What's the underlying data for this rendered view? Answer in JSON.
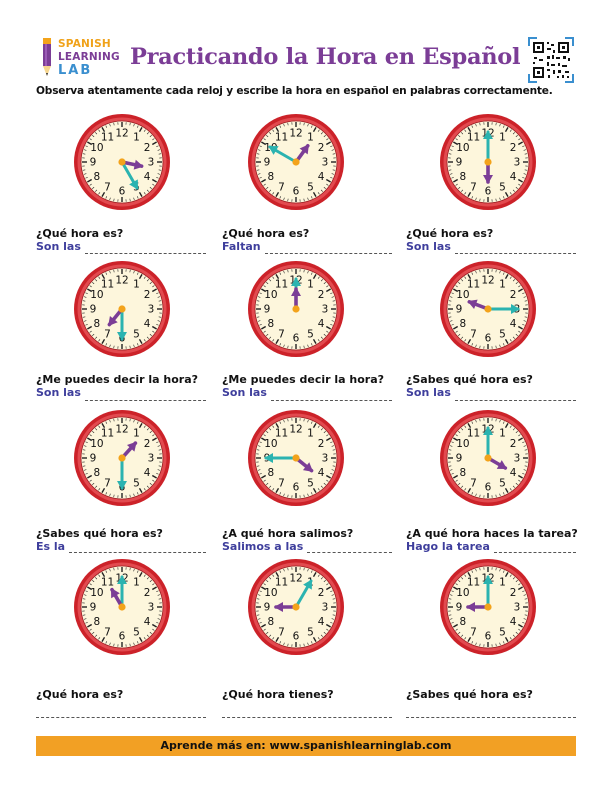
{
  "header": {
    "logo": {
      "line1": "SPANISH",
      "line2": "LEARNING",
      "line3": "LAB"
    },
    "title": "Practicando la Hora en Español",
    "instructions": "Observa atentamente cada reloj y escribe la hora en español en palabras correctamente.",
    "qr_icon": "qr-code-icon"
  },
  "colors": {
    "title": "#7b3d96",
    "clock_rim": "#cc2229",
    "clock_face": "#fdf6dc",
    "hour_hand": "#7b3d96",
    "minute_hand": "#2bb3b0",
    "center": "#f3a31b",
    "prefix_text": "#3e3e9c",
    "footer_bg": "#f2a024"
  },
  "exercises": [
    {
      "question": "¿Qué hora es?",
      "prefix": "Son las",
      "hour": 3.4,
      "minute": 25
    },
    {
      "question": "¿Qué hora es?",
      "prefix": "Faltan",
      "hour": 1.2,
      "minute": 50
    },
    {
      "question": "¿Qué hora es?",
      "prefix": "Son las",
      "hour": 6,
      "minute": 0
    },
    {
      "question": "¿Me puedes decir la hora?",
      "prefix": "Son las",
      "hour": 7.3,
      "minute": 30
    },
    {
      "question": "¿Me puedes decir la hora?",
      "prefix": "Son las",
      "hour": 12,
      "minute": 0
    },
    {
      "question": "¿Sabes qué hora es?",
      "prefix": "Son las",
      "hour": 9.7,
      "minute": 15
    },
    {
      "question": "¿Sabes qué hora es?",
      "prefix": "Es la",
      "hour": 1.4,
      "minute": 30
    },
    {
      "question": "¿A qué hora salimos?",
      "prefix": "Salimos a las",
      "hour": 4.3,
      "minute": 45
    },
    {
      "question": "¿A qué hora haces la tarea?",
      "prefix": "Hago la tarea",
      "hour": 4,
      "minute": 0
    },
    {
      "question": "¿Qué hora es?",
      "prefix": "",
      "hour": 11,
      "minute": 0
    },
    {
      "question": "¿Qué hora tienes?",
      "prefix": "",
      "hour": 9,
      "minute": 5
    },
    {
      "question": "¿Sabes qué hora es?",
      "prefix": "",
      "hour": 9,
      "minute": 0
    }
  ],
  "footer": {
    "text": "Aprende más en:  www.spanishlearninglab.com"
  }
}
